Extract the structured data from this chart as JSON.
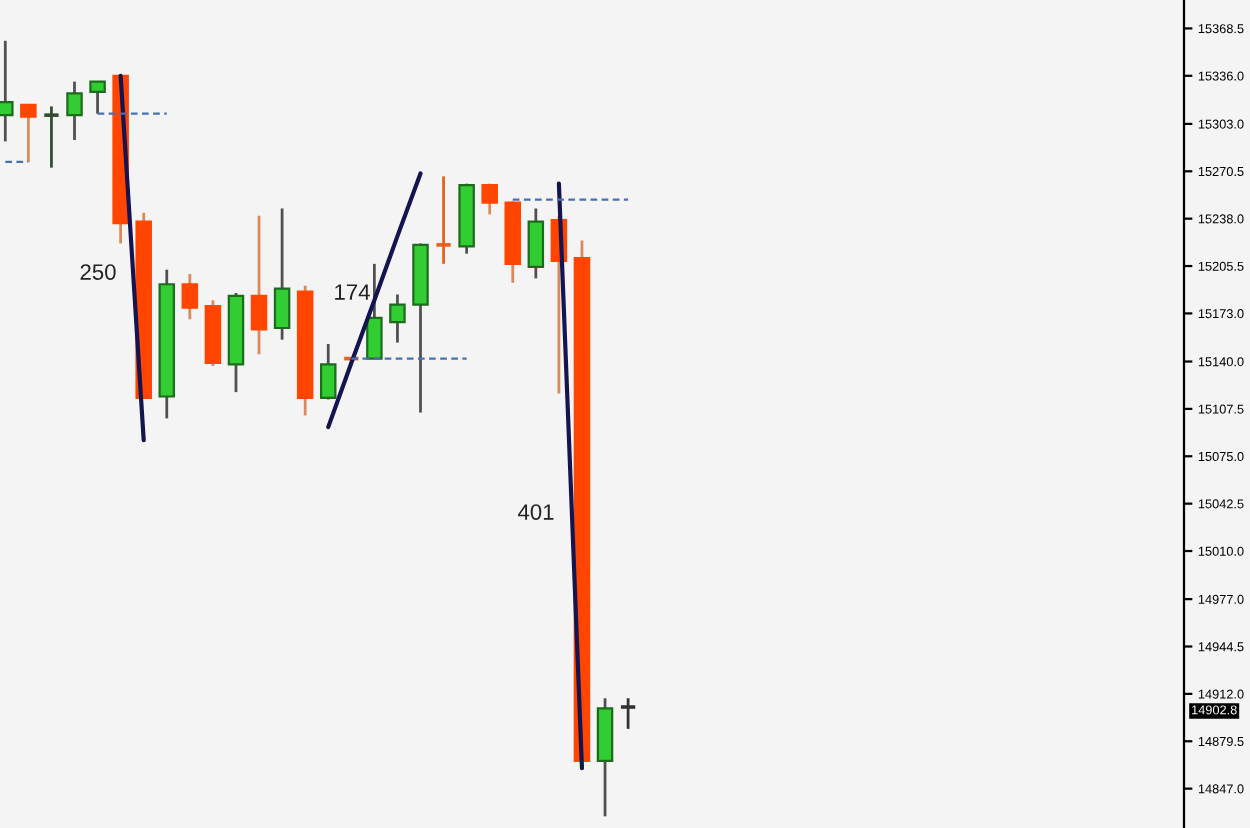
{
  "chart_data": {
    "type": "candlestick",
    "categories": [
      null,
      null,
      null,
      null,
      null,
      null,
      null,
      null,
      null,
      null,
      null,
      null,
      null,
      null,
      null,
      null,
      null,
      null,
      null,
      null,
      null,
      null,
      null,
      null,
      null,
      null,
      null,
      null,
      null,
      null,
      null,
      null,
      null,
      null,
      null,
      null,
      null,
      null,
      null,
      null,
      null,
      null,
      null,
      null,
      null,
      null,
      null,
      null,
      null,
      null,
      null,
      null
    ],
    "ohlc": [
      [
        15309,
        15360,
        15291,
        15318
      ],
      [
        15316,
        15316,
        15277,
        15308
      ],
      [
        15309,
        15315,
        15273,
        15309
      ],
      [
        15309,
        15332,
        15292,
        15324
      ],
      [
        15325,
        15332,
        15310,
        15332
      ],
      [
        15336,
        15337,
        15221,
        15235
      ],
      [
        15236,
        15242,
        15115,
        15115
      ],
      [
        15116,
        15203,
        15101,
        15193
      ],
      [
        15193,
        15200,
        15169,
        15177
      ],
      [
        15178,
        15182,
        15137,
        15139
      ],
      [
        15138,
        15187,
        15119,
        15185
      ],
      [
        15185,
        15240,
        15145,
        15162
      ],
      [
        15163,
        15245,
        15155,
        15190
      ],
      [
        15188,
        15192,
        15103,
        15115
      ],
      [
        15115,
        15152,
        15114,
        15138
      ],
      [
        15142,
        15143,
        15141,
        15142
      ],
      [
        15142,
        15207,
        15142,
        15170
      ],
      [
        15167,
        15186,
        15153,
        15179
      ],
      [
        15179,
        15221,
        15105,
        15220
      ],
      [
        15220,
        15267,
        15207,
        15220
      ],
      [
        15219,
        15262,
        15214,
        15261
      ],
      [
        15261,
        15262,
        15241,
        15249
      ],
      [
        15249,
        15250,
        15194,
        15207
      ],
      [
        15205,
        15245,
        15197,
        15236
      ],
      [
        15237,
        15240,
        15118,
        15209
      ],
      [
        15211,
        15223,
        14865,
        14866
      ],
      [
        14866,
        14909,
        14828,
        14902
      ],
      [
        14903,
        14909,
        14888,
        14903
      ],
      null,
      null,
      null,
      null,
      null,
      null,
      null,
      null,
      null,
      null,
      null,
      null,
      null,
      null,
      null,
      null,
      null,
      null,
      null,
      null,
      null,
      null,
      null,
      null
    ],
    "colors": [
      "#32cd32",
      "#ff4500",
      "#2f4f2f",
      "#32cd32",
      "#32cd32",
      "#ff4500",
      "#ff4500",
      "#32cd32",
      "#ff4500",
      "#ff4500",
      "#32cd32",
      "#ff4500",
      "#32cd32",
      "#ff4500",
      "#32cd32",
      "#e8601c",
      "#32cd32",
      "#32cd32",
      "#32cd32",
      "#e8601c",
      "#32cd32",
      "#ff4500",
      "#ff4500",
      "#32cd32",
      "#ff4500",
      "#ff4500",
      "#32cd32",
      "#333333",
      null,
      null,
      null,
      null,
      null,
      null,
      null,
      null,
      null,
      null,
      null,
      null,
      null,
      null,
      null,
      null,
      null,
      null,
      null,
      null,
      null,
      null,
      null,
      null
    ],
    "series": [
      {
        "type": "line",
        "color": "#141450",
        "line_style": "solid",
        "values": [
          null,
          null,
          null,
          null,
          null,
          15336,
          15086,
          null,
          null,
          null,
          null,
          null,
          null,
          null,
          null,
          null,
          null,
          null,
          null,
          null,
          null,
          null,
          null,
          null,
          null,
          null,
          null,
          null,
          null,
          null,
          null,
          null,
          null,
          null,
          null,
          null,
          null,
          null,
          null,
          null,
          null,
          null,
          null,
          null,
          null,
          null,
          null,
          null,
          null,
          null,
          null,
          null
        ]
      },
      {
        "type": "line",
        "color": "#141450",
        "line_style": "solid",
        "values": [
          null,
          null,
          null,
          null,
          null,
          null,
          null,
          null,
          null,
          null,
          null,
          null,
          null,
          null,
          15095,
          15139,
          15182,
          15226,
          15269,
          null,
          null,
          null,
          null,
          null,
          null,
          null,
          null,
          null,
          null,
          null,
          null,
          null,
          null,
          null,
          null,
          null,
          null,
          null,
          null,
          null,
          null,
          null,
          null,
          null,
          null,
          null,
          null,
          null,
          null,
          null,
          null,
          null
        ]
      },
      {
        "type": "line",
        "color": "#141450",
        "line_style": "solid",
        "values": [
          null,
          null,
          null,
          null,
          null,
          null,
          null,
          null,
          null,
          null,
          null,
          null,
          null,
          null,
          null,
          null,
          null,
          null,
          null,
          null,
          null,
          null,
          null,
          null,
          15262,
          14861,
          null,
          null,
          null,
          null,
          null,
          null,
          null,
          null,
          null,
          null,
          null,
          null,
          null,
          null,
          null,
          null,
          null,
          null,
          null,
          null,
          null,
          null,
          null,
          null,
          null,
          null
        ]
      },
      {
        "type": "line",
        "color": "#4a70b0",
        "line_style": "dashed",
        "values": [
          15277,
          15277,
          null,
          null,
          null,
          null,
          null,
          null,
          null,
          null,
          null,
          null,
          null,
          null,
          null,
          null,
          null,
          null,
          null,
          null,
          null,
          null,
          null,
          null,
          null,
          null,
          null,
          null,
          null,
          null,
          null,
          null,
          null,
          null,
          null,
          null,
          null,
          null,
          null,
          null,
          null,
          null,
          null,
          null,
          null,
          null,
          null,
          null,
          null,
          null,
          null,
          null
        ]
      },
      {
        "type": "line",
        "color": "#4a70b0",
        "line_style": "dashed",
        "values": [
          null,
          null,
          null,
          null,
          15310,
          15310,
          15310,
          15310,
          null,
          null,
          null,
          null,
          null,
          null,
          null,
          null,
          null,
          null,
          null,
          null,
          null,
          null,
          null,
          null,
          null,
          null,
          null,
          null,
          null,
          null,
          null,
          null,
          null,
          null,
          null,
          null,
          null,
          null,
          null,
          null,
          null,
          null,
          null,
          null,
          null,
          null,
          null,
          null,
          null,
          null,
          null,
          null
        ]
      },
      {
        "type": "line",
        "color": "#4a70b0",
        "line_style": "dashed",
        "values": [
          null,
          null,
          null,
          null,
          null,
          null,
          null,
          null,
          null,
          null,
          null,
          null,
          null,
          null,
          null,
          15142,
          15142,
          15142,
          15142,
          15142,
          15142,
          null,
          null,
          null,
          null,
          null,
          null,
          null,
          null,
          null,
          null,
          null,
          null,
          null,
          null,
          null,
          null,
          null,
          null,
          null,
          null,
          null,
          null,
          null,
          null,
          null,
          null,
          null,
          null,
          null,
          null,
          null
        ]
      },
      {
        "type": "line",
        "color": "#4a70b0",
        "line_style": "dashed",
        "values": [
          null,
          null,
          null,
          null,
          null,
          null,
          null,
          null,
          null,
          null,
          null,
          null,
          null,
          null,
          null,
          null,
          null,
          null,
          null,
          null,
          null,
          null,
          15251,
          15251,
          15251,
          15251,
          15251,
          15251,
          null,
          null,
          null,
          null,
          null,
          null,
          null,
          null,
          null,
          null,
          null,
          null,
          null,
          null,
          null,
          null,
          null,
          null,
          null,
          null,
          null,
          null,
          null,
          null
        ]
      }
    ],
    "ylim": [
      14820,
      15388
    ],
    "yticks": [
      15368.5,
      {
        "value": 15336,
        "label": "15336.0"
      },
      {
        "value": 15303,
        "label": "15303.0"
      },
      15270.5,
      {
        "value": 15238,
        "label": "15238.0"
      },
      15205.5,
      {
        "value": 15173,
        "label": "15173.0"
      },
      {
        "value": 15140,
        "label": "15140.0"
      },
      15107.5,
      {
        "value": 15075,
        "label": "15075.0"
      },
      15042.5,
      {
        "value": 15010,
        "label": "15010.0"
      },
      {
        "value": 14977,
        "label": "14977.0"
      },
      14944.5,
      {
        "value": 14912,
        "label": "14912.0"
      },
      14879.5,
      {
        "value": 14847,
        "label": "14847.0"
      }
    ],
    "annotations": [
      "250",
      "174",
      "401",
      "14902.8"
    ],
    "tick_labels": "y",
    "grid": false,
    "legend": false
  }
}
